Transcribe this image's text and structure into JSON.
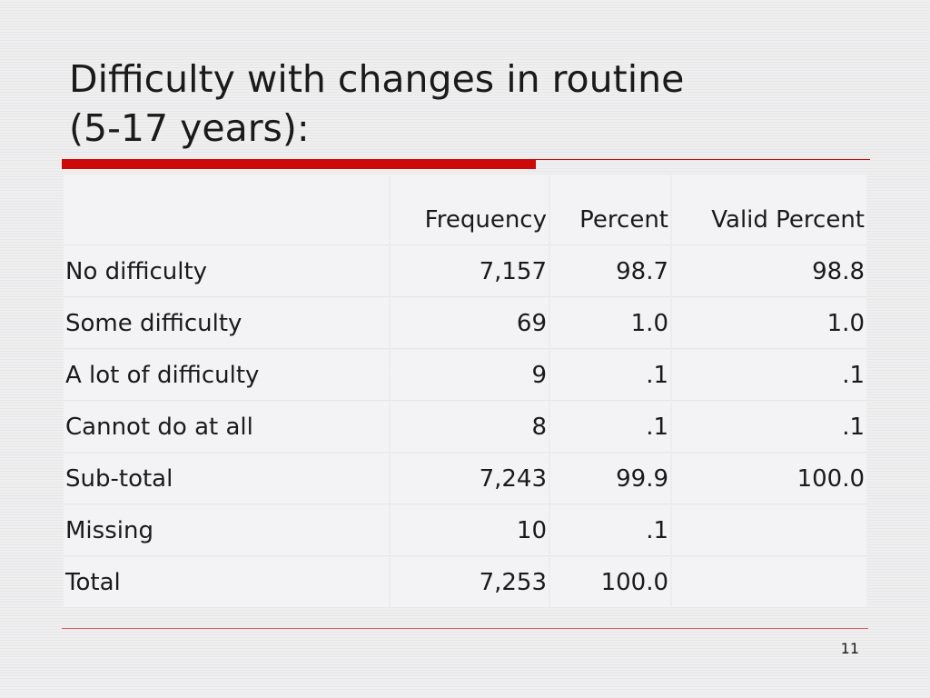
{
  "slide": {
    "title_line1": "Difficulty with changes in routine",
    "title_line2": "(5-17 years):",
    "page_number": "11",
    "accent_color": "#cc0a0a"
  },
  "table": {
    "headers": {
      "label": "",
      "frequency": "Frequency",
      "percent": "Percent",
      "valid_percent": "Valid Percent"
    },
    "rows": [
      {
        "label": "No difficulty",
        "frequency": "7,157",
        "percent": "98.7",
        "valid_percent": "98.8"
      },
      {
        "label": "Some difficulty",
        "frequency": "69",
        "percent": "1.0",
        "valid_percent": "1.0"
      },
      {
        "label": "A lot of difficulty",
        "frequency": "9",
        "percent": ".1",
        "valid_percent": ".1"
      },
      {
        "label": "Cannot do at all",
        "frequency": "8",
        "percent": ".1",
        "valid_percent": ".1"
      },
      {
        "label": "Sub-total",
        "frequency": "7,243",
        "percent": "99.9",
        "valid_percent": "100.0"
      },
      {
        "label": "Missing",
        "frequency": "10",
        "percent": ".1",
        "valid_percent": ""
      },
      {
        "label": "Total",
        "frequency": "7,253",
        "percent": "100.0",
        "valid_percent": ""
      }
    ]
  }
}
